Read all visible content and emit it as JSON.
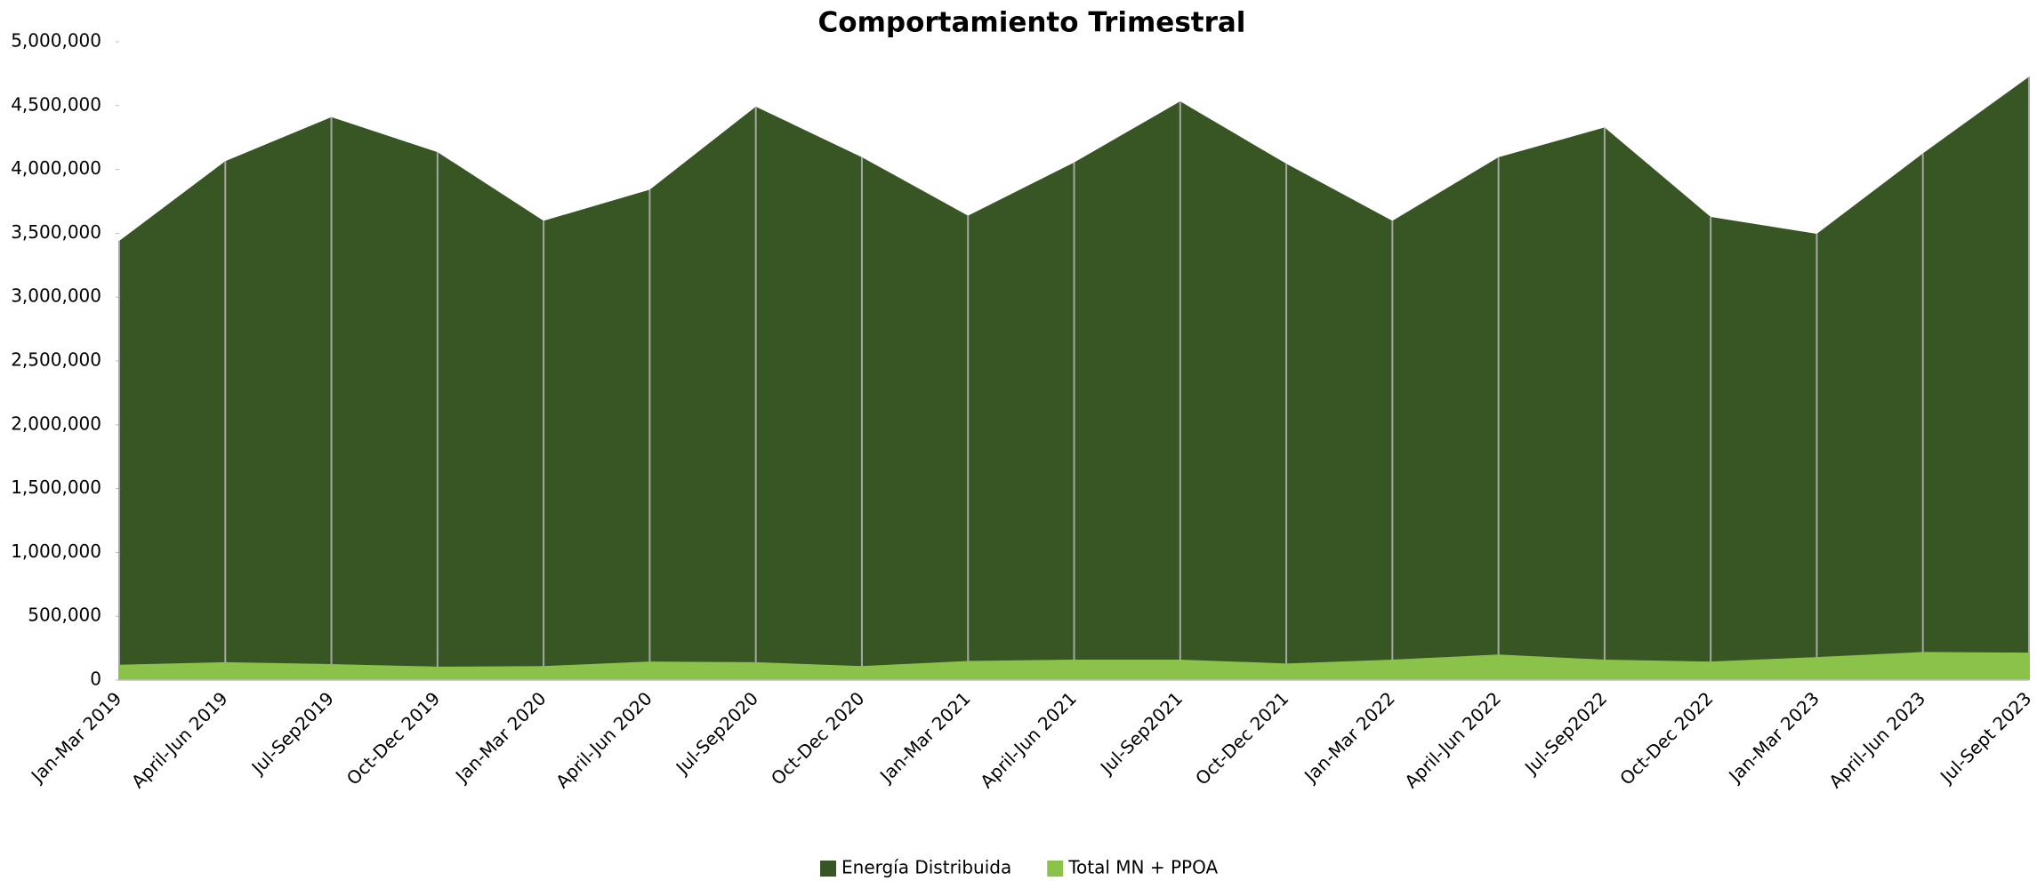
{
  "chart_data": {
    "type": "area",
    "title": "Comportamiento Trimestral",
    "categories": [
      "Jan-Mar 2019",
      "April-Jun 2019",
      "Jul-Sep2019",
      "Oct-Dec 2019",
      "Jan-Mar 2020",
      "April-Jun 2020",
      "Jul-Sep2020",
      "Oct-Dec 2020",
      "Jan-Mar 2021",
      "April-Jun 2021",
      "Jul-Sep2021",
      "Oct-Dec 2021",
      "Jan-Mar 2022",
      "April-Jun 2022",
      "Jul-Sep2022",
      "Oct-Dec 2022",
      "Jan-Mar 2023",
      "April-Jun 2023",
      "Jul-Sept 2023"
    ],
    "series": [
      {
        "name": "Energía Distribuida",
        "color": "#375623",
        "values": [
          3440000,
          4065000,
          4410000,
          4136000,
          3598000,
          3841000,
          4492000,
          4096000,
          3638000,
          4055000,
          4533000,
          4045000,
          3598000,
          4096000,
          4329000,
          3628000,
          3496000,
          4126000,
          4726000
        ]
      },
      {
        "name": "Total MN + PPOA",
        "color": "#8bc34a",
        "values": [
          120000,
          140000,
          125000,
          105000,
          110000,
          145000,
          140000,
          110000,
          150000,
          160000,
          160000,
          130000,
          160000,
          200000,
          160000,
          145000,
          180000,
          220000,
          215000
        ]
      }
    ],
    "ylim": [
      0,
      5000000
    ],
    "yticks": [
      0,
      {
        "value": 500000,
        "label": "500,000"
      },
      {
        "value": 1000000,
        "label": "1,000,000"
      },
      {
        "value": 1500000,
        "label": "1,500,000"
      },
      {
        "value": 2000000,
        "label": "2,000,000"
      },
      {
        "value": 2500000,
        "label": "2,500,000"
      },
      {
        "value": 3000000,
        "label": "3,000,000"
      },
      {
        "value": 3500000,
        "label": "3,500,000"
      },
      {
        "value": 4000000,
        "label": "4,000,000"
      },
      {
        "value": 4500000,
        "label": "4,500,000"
      },
      {
        "value": 5000000,
        "label": "5,000,000"
      }
    ],
    "drop_lines": true,
    "legend": "bottom"
  }
}
